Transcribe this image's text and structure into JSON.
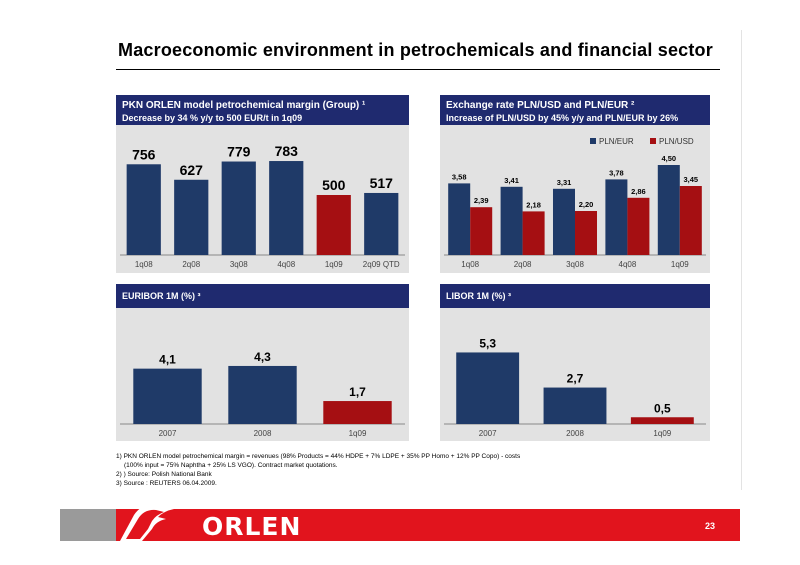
{
  "page": {
    "title": "Macroeconomic environment in petrochemicals and financial sector",
    "page_number": "23"
  },
  "panels": {
    "margin": {
      "line1": "PKN ORLEN model petrochemical margin (Group) ¹",
      "line2": "Decrease by 34 % y/y to 500 EUR/t in 1q09"
    },
    "fx": {
      "line1": "Exchange rate PLN/USD and PLN/EUR ²",
      "line2": "Increase of PLN/USD by 45% y/y and PLN/EUR by 26%"
    },
    "euribor": {
      "line1": "EURIBOR 1M (%) ³"
    },
    "libor": {
      "line1": "LIBOR 1M (%) ³"
    }
  },
  "footnotes": [
    "1) PKN ORLEN model petrochemical margin = revenues (98% Products = 44% HDPE + 7% LDPE + 35% PP Homo + 12% PP Copo) - costs",
    "(100% input = 75% Naphtha + 25% LS VGO). Contract market quotations.",
    "2) ) Source: Polish National Bank",
    "3) Source : REUTERS 06.04.2009."
  ],
  "logo": {
    "text": "ORLEN"
  },
  "colors": {
    "navy": "#1f3a68",
    "red": "#a50f12",
    "header": "#1f2a6f",
    "plot_bg": "#e2e2e2"
  },
  "chart_data": [
    {
      "id": "margin",
      "type": "bar",
      "categories": [
        "1q08",
        "2q08",
        "3q08",
        "4q08",
        "1q09",
        "2q09 QTD"
      ],
      "values": [
        756,
        627,
        779,
        783,
        500,
        517
      ],
      "labels": [
        "756",
        "627",
        "779",
        "783",
        "500",
        "517"
      ],
      "colors": [
        "#1f3a68",
        "#1f3a68",
        "#1f3a68",
        "#1f3a68",
        "#a50f12",
        "#1f3a68"
      ],
      "ylim": [
        0,
        1000
      ]
    },
    {
      "id": "fx",
      "type": "bar",
      "categories": [
        "1q08",
        "2q08",
        "3q08",
        "4q08",
        "1q09"
      ],
      "series": [
        {
          "name": "PLN/EUR",
          "values": [
            3.58,
            3.41,
            3.31,
            3.78,
            4.5
          ],
          "labels": [
            "3,58",
            "3,41",
            "3,31",
            "3,78",
            "4,50"
          ],
          "color": "#1f3a68"
        },
        {
          "name": "PLN/USD",
          "values": [
            2.39,
            2.18,
            2.2,
            2.86,
            3.45
          ],
          "labels": [
            "2,39",
            "2,18",
            "2,20",
            "2,86",
            "3,45"
          ],
          "color": "#a50f12"
        }
      ],
      "legend": "top",
      "ylim": [
        0,
        5
      ]
    },
    {
      "id": "euribor",
      "type": "bar",
      "categories": [
        "2007",
        "2008",
        "1q09"
      ],
      "values": [
        4.1,
        4.3,
        1.7
      ],
      "labels": [
        "4,1",
        "4,3",
        "1,7"
      ],
      "colors": [
        "#1f3a68",
        "#1f3a68",
        "#a50f12"
      ],
      "ylim": [
        0,
        8
      ]
    },
    {
      "id": "libor",
      "type": "bar",
      "categories": [
        "2007",
        "2008",
        "1q09"
      ],
      "values": [
        5.3,
        2.7,
        0.5
      ],
      "labels": [
        "5,3",
        "2,7",
        "0,5"
      ],
      "colors": [
        "#1f3a68",
        "#1f3a68",
        "#a50f12"
      ],
      "ylim": [
        0,
        8
      ]
    }
  ]
}
